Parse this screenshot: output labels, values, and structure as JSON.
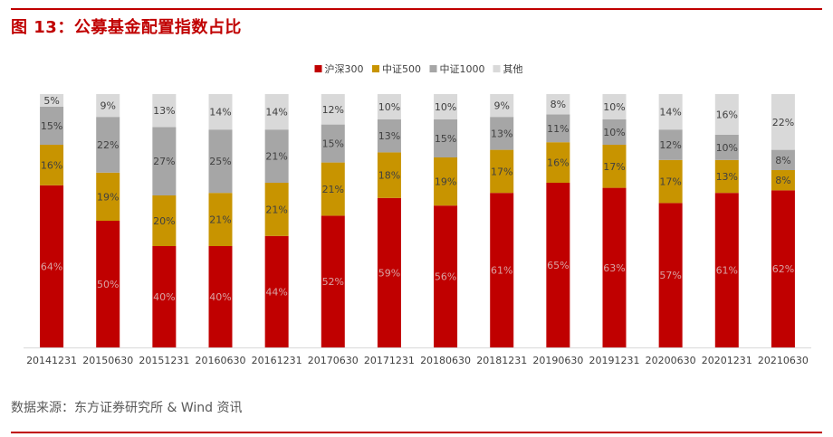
{
  "figure": {
    "title": "图 13：公募基金配置指数占比",
    "source": "数据来源：东方证券研究所  & Wind 资讯"
  },
  "chart_data": {
    "type": "bar",
    "stacked": true,
    "percent_stacked": true,
    "categories": [
      "20141231",
      "20150630",
      "20151231",
      "20160630",
      "20161231",
      "20170630",
      "20171231",
      "20180630",
      "20181231",
      "20190630",
      "20191231",
      "20200630",
      "20201231",
      "20210630"
    ],
    "series": [
      {
        "name": "沪深300",
        "color": "#c00000",
        "label_color": "#d9a3a3",
        "values": [
          64,
          50,
          40,
          40,
          44,
          52,
          59,
          56,
          61,
          65,
          63,
          57,
          61,
          62
        ]
      },
      {
        "name": "中证500",
        "color": "#c89400",
        "label_color": "#404040",
        "values": [
          16,
          19,
          20,
          21,
          21,
          21,
          18,
          19,
          17,
          16,
          17,
          17,
          13,
          8
        ]
      },
      {
        "name": "中证1000",
        "color": "#a6a6a6",
        "label_color": "#404040",
        "values": [
          15,
          22,
          27,
          25,
          21,
          15,
          13,
          15,
          13,
          11,
          10,
          12,
          10,
          8
        ]
      },
      {
        "name": "其他",
        "color": "#d9d9d9",
        "label_color": "#404040",
        "values": [
          5,
          9,
          13,
          14,
          14,
          12,
          10,
          10,
          9,
          8,
          10,
          14,
          16,
          22
        ]
      }
    ],
    "value_suffix": "%",
    "ylim": [
      0,
      100
    ],
    "legend_position": "top-center",
    "grid": false
  }
}
